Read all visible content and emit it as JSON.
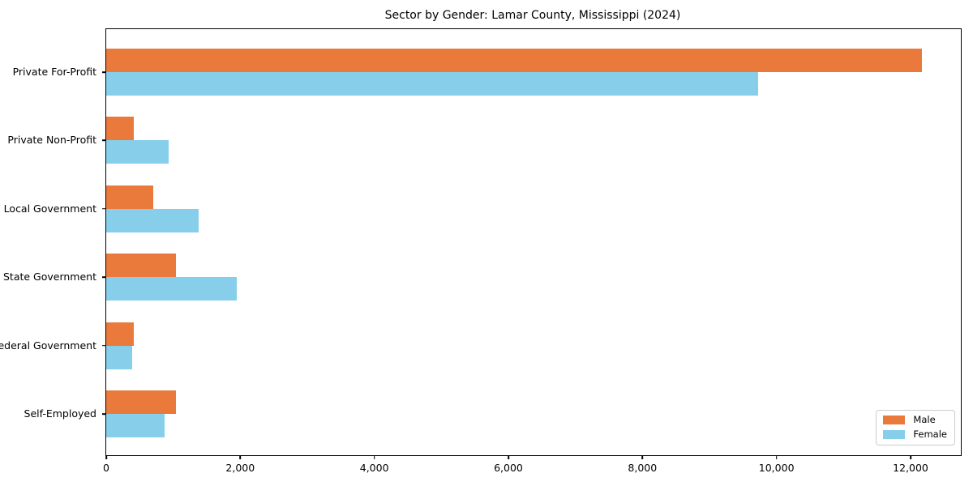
{
  "figure": {
    "background": "#ffffff"
  },
  "chart_data": {
    "type": "bar",
    "orientation": "horizontal",
    "title": "Sector by Gender: Lamar County, Mississippi (2024)",
    "categories": [
      "Private For-Profit",
      "Private Non-Profit",
      "Local Government",
      "State Government",
      "Federal Government",
      "Self-Employed"
    ],
    "series": [
      {
        "name": "Male",
        "color": "#EA7A3C",
        "values": [
          12170,
          410,
          705,
          1035,
          410,
          1040
        ]
      },
      {
        "name": "Female",
        "color": "#87CEEB",
        "values": [
          9730,
          935,
          1380,
          1945,
          385,
          870
        ]
      }
    ],
    "xlim": [
      0,
      12750
    ],
    "x_ticks": [
      0,
      2000,
      4000,
      6000,
      8000,
      10000,
      12000
    ],
    "x_tick_labels": [
      "0",
      "2,000",
      "4,000",
      "6,000",
      "8,000",
      "10,000",
      "12,000"
    ],
    "xlabel": "",
    "ylabel": "",
    "grid": false,
    "legend": {
      "position": "lower-right",
      "entries": [
        "Male",
        "Female"
      ]
    }
  }
}
